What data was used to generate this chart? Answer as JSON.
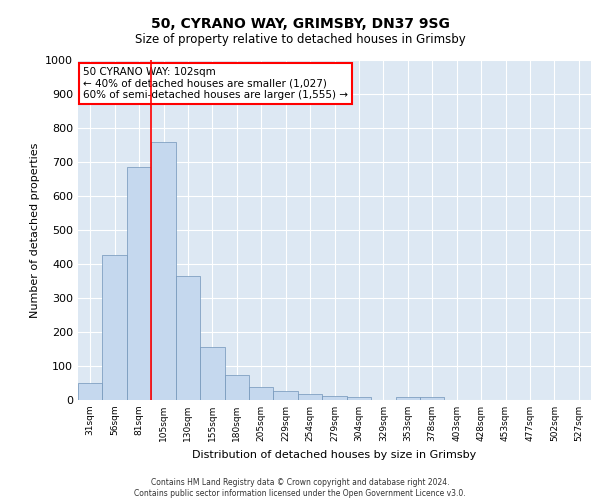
{
  "title": "50, CYRANO WAY, GRIMSBY, DN37 9SG",
  "subtitle": "Size of property relative to detached houses in Grimsby",
  "xlabel": "Distribution of detached houses by size in Grimsby",
  "ylabel": "Number of detached properties",
  "bar_color": "#c5d8ee",
  "bar_edge_color": "#7094b8",
  "background_color": "#dde8f3",
  "categories": [
    "31sqm",
    "56sqm",
    "81sqm",
    "105sqm",
    "130sqm",
    "155sqm",
    "180sqm",
    "205sqm",
    "229sqm",
    "254sqm",
    "279sqm",
    "304sqm",
    "329sqm",
    "353sqm",
    "378sqm",
    "403sqm",
    "428sqm",
    "453sqm",
    "477sqm",
    "502sqm",
    "527sqm"
  ],
  "values": [
    50,
    425,
    685,
    760,
    365,
    155,
    75,
    38,
    27,
    17,
    13,
    8,
    0,
    8,
    8,
    0,
    0,
    0,
    0,
    0,
    0
  ],
  "ylim": [
    0,
    1000
  ],
  "yticks": [
    0,
    100,
    200,
    300,
    400,
    500,
    600,
    700,
    800,
    900,
    1000
  ],
  "property_line_x": 3.0,
  "property_label": "50 CYRANO WAY: 102sqm",
  "annotation_line1": "← 40% of detached houses are smaller (1,027)",
  "annotation_line2": "60% of semi-detached houses are larger (1,555) →",
  "footer_line1": "Contains HM Land Registry data © Crown copyright and database right 2024.",
  "footer_line2": "Contains public sector information licensed under the Open Government Licence v3.0."
}
